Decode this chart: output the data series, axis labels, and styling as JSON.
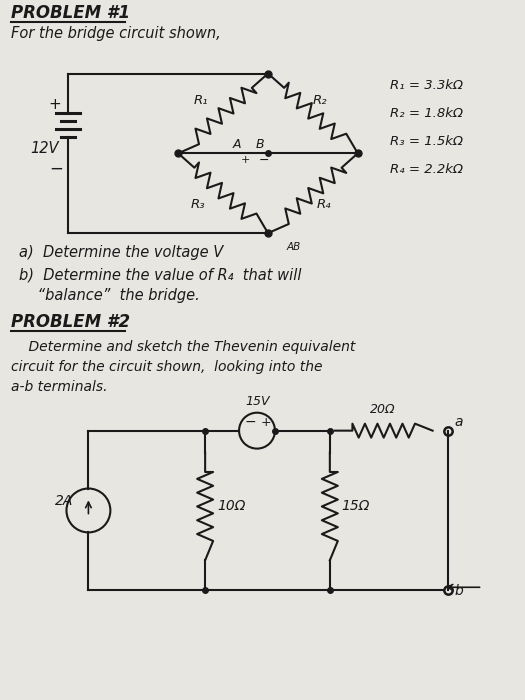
{
  "bg_color": "#e8e6e0",
  "title1": "PROBLEM #1",
  "subtitle1": "For the bridge circuit shown,",
  "voltage_label": "12V",
  "R1_label": "R₁",
  "R2_label": "R₂",
  "R3_label": "R₃",
  "R4_label": "R₄",
  "R1_val": "R₁ = 3.3kΩ",
  "R2_val": "R₂ = 1.8kΩ",
  "R3_val": "R₃ = 1.5kΩ",
  "R4_val": "R₄ = 2.2kΩ",
  "part_a": "a)  Determine the voltage V",
  "part_a_sub": "AB",
  "part_b1": "b)  Determine the value of R₄  that will",
  "part_b2": "    “balance”  the bridge.",
  "title2": "PROBLEM #2",
  "prob2_line1": "    Determine and sketch the Thevenin equivalent",
  "prob2_line2": "circuit for the circuit shown,  looking into the",
  "prob2_line3": "a-b terminals.",
  "v15_label": "15V",
  "r20_label": "20Ω",
  "r10_label": "10Ω",
  "r15_label": "15Ω",
  "curr_label": "2A",
  "term_a": "a",
  "term_b": "b",
  "plus": "+",
  "minus": "−"
}
